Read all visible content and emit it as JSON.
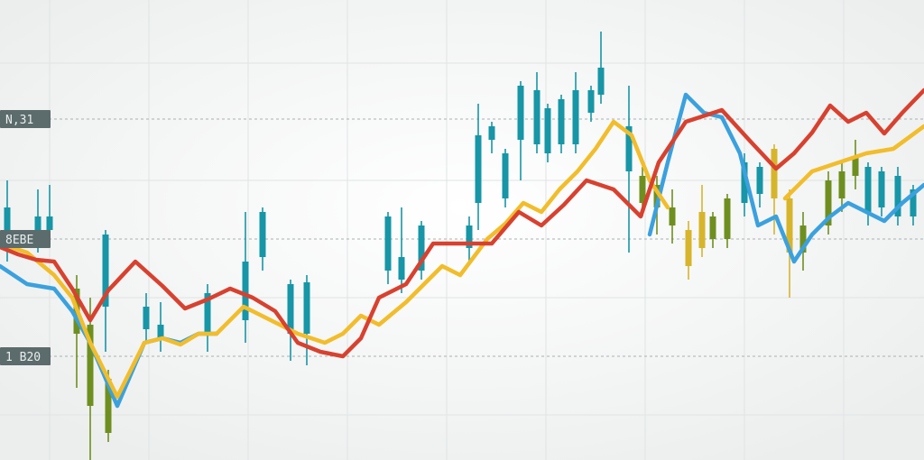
{
  "chart_data": {
    "type": "line",
    "title": "",
    "xlabel": "",
    "ylabel": "",
    "grid": true,
    "legend": "none",
    "ylim": [
      0,
      510
    ],
    "price_labels": [
      {
        "text": "N,31",
        "value": 378
      },
      {
        "text": "8EBE",
        "value": 245
      },
      {
        "text": "1 B20",
        "value": 115
      }
    ],
    "colors": {
      "red": "#d8412f",
      "yellow": "#f2bd2a",
      "blue": "#3aa1de",
      "teal": "#1696a6",
      "olive": "#6e8f1f",
      "gold": "#d7b52b",
      "tag_bg": "#5c6b6b",
      "tag_text": "#e9eeee",
      "grid": "#e1e4e4"
    },
    "series": [
      {
        "name": "red",
        "x": [
          0,
          20,
          40,
          60,
          80,
          100,
          120,
          150,
          180,
          205,
          230,
          255,
          280,
          305,
          330,
          355,
          380,
          400,
          420,
          450,
          480,
          520,
          545,
          575,
          600,
          625,
          650,
          680,
          710,
          730,
          760,
          800,
          830,
          860,
          880,
          900,
          920,
          940,
          960,
          980,
          1000,
          1024
        ],
        "y": [
          236,
          228,
          222,
          220,
          190,
          155,
          188,
          220,
          193,
          168,
          178,
          190,
          180,
          165,
          130,
          120,
          115,
          135,
          180,
          195,
          240,
          240,
          240,
          275,
          260,
          283,
          310,
          300,
          270,
          330,
          375,
          388,
          355,
          323,
          340,
          363,
          393,
          375,
          385,
          362,
          385,
          410
        ]
      },
      {
        "name": "yellow",
        "x": [
          0,
          30,
          60,
          80,
          100,
          130,
          160,
          180,
          200,
          220,
          240,
          270,
          300,
          330,
          360,
          380,
          400,
          420,
          450,
          470,
          490,
          510,
          540,
          560,
          580,
          600,
          620,
          640,
          660,
          680,
          700,
          720,
          740
        ],
        "y": [
          240,
          230,
          205,
          180,
          130,
          70,
          130,
          135,
          128,
          140,
          140,
          170,
          155,
          140,
          130,
          140,
          160,
          150,
          175,
          195,
          215,
          205,
          245,
          262,
          285,
          275,
          300,
          320,
          345,
          375,
          360,
          310,
          280
        ]
      },
      {
        "name": "yellow-right",
        "x": [
          870,
          900,
          930,
          960,
          990,
          1024
        ],
        "y": [
          290,
          320,
          330,
          340,
          345,
          370
        ]
      },
      {
        "name": "blue",
        "x": [
          0,
          30,
          60,
          80,
          100,
          130,
          160,
          180,
          200,
          220,
          240
        ],
        "y": [
          215,
          195,
          190,
          165,
          130,
          60,
          130,
          135,
          130,
          140,
          140
        ]
      },
      {
        "name": "blue-right",
        "x": [
          720,
          740,
          760,
          780,
          800,
          820,
          840,
          860,
          880,
          900,
          920,
          940,
          960,
          980,
          1000,
          1024
        ],
        "y": [
          250,
          330,
          405,
          385,
          380,
          340,
          260,
          270,
          220,
          250,
          270,
          285,
          275,
          265,
          285,
          305
        ]
      }
    ],
    "candles": [
      {
        "x": 8,
        "o": 280,
        "c": 240,
        "h": 310,
        "l": 220,
        "color": "teal"
      },
      {
        "x": 42,
        "o": 270,
        "c": 250,
        "h": 300,
        "l": 230,
        "color": "teal"
      },
      {
        "x": 55,
        "o": 270,
        "c": 255,
        "h": 305,
        "l": 240,
        "color": "teal"
      },
      {
        "x": 85,
        "o": 190,
        "c": 140,
        "h": 205,
        "l": 80,
        "color": "olive"
      },
      {
        "x": 100,
        "o": 150,
        "c": 60,
        "h": 180,
        "l": 0,
        "color": "olive"
      },
      {
        "x": 117,
        "o": 250,
        "c": 170,
        "h": 255,
        "l": 120,
        "color": "teal"
      },
      {
        "x": 120,
        "o": 90,
        "c": 30,
        "h": 100,
        "l": 20,
        "color": "olive"
      },
      {
        "x": 162,
        "o": 170,
        "c": 145,
        "h": 185,
        "l": 130,
        "color": "teal"
      },
      {
        "x": 178,
        "o": 150,
        "c": 135,
        "h": 175,
        "l": 120,
        "color": "teal"
      },
      {
        "x": 230,
        "o": 185,
        "c": 140,
        "h": 195,
        "l": 120,
        "color": "teal"
      },
      {
        "x": 272,
        "o": 220,
        "c": 155,
        "h": 275,
        "l": 130,
        "color": "teal"
      },
      {
        "x": 291,
        "o": 275,
        "c": 225,
        "h": 280,
        "l": 210,
        "color": "teal"
      },
      {
        "x": 322,
        "o": 195,
        "c": 140,
        "h": 200,
        "l": 110,
        "color": "teal"
      },
      {
        "x": 340,
        "o": 197,
        "c": 140,
        "h": 205,
        "l": 105,
        "color": "teal"
      },
      {
        "x": 430,
        "o": 270,
        "c": 210,
        "h": 275,
        "l": 195,
        "color": "teal"
      },
      {
        "x": 445,
        "o": 225,
        "c": 200,
        "h": 280,
        "l": 185,
        "color": "teal"
      },
      {
        "x": 467,
        "o": 260,
        "c": 210,
        "h": 265,
        "l": 200,
        "color": "teal"
      },
      {
        "x": 520,
        "o": 260,
        "c": 235,
        "h": 270,
        "l": 220,
        "color": "teal"
      },
      {
        "x": 530,
        "o": 360,
        "c": 285,
        "h": 395,
        "l": 255,
        "color": "teal"
      },
      {
        "x": 545,
        "o": 370,
        "c": 355,
        "h": 375,
        "l": 340,
        "color": "teal"
      },
      {
        "x": 560,
        "o": 340,
        "c": 290,
        "h": 345,
        "l": 280,
        "color": "teal"
      },
      {
        "x": 577,
        "o": 415,
        "c": 355,
        "h": 420,
        "l": 310,
        "color": "teal"
      },
      {
        "x": 595,
        "o": 410,
        "c": 350,
        "h": 430,
        "l": 340,
        "color": "teal"
      },
      {
        "x": 607,
        "o": 390,
        "c": 340,
        "h": 395,
        "l": 330,
        "color": "teal"
      },
      {
        "x": 622,
        "o": 400,
        "c": 350,
        "h": 405,
        "l": 340,
        "color": "teal"
      },
      {
        "x": 638,
        "o": 410,
        "c": 350,
        "h": 430,
        "l": 340,
        "color": "teal"
      },
      {
        "x": 655,
        "o": 410,
        "c": 385,
        "h": 415,
        "l": 375,
        "color": "teal"
      },
      {
        "x": 666,
        "o": 435,
        "c": 405,
        "h": 475,
        "l": 395,
        "color": "teal"
      },
      {
        "x": 697,
        "o": 370,
        "c": 320,
        "h": 415,
        "l": 230,
        "color": "teal"
      },
      {
        "x": 712,
        "o": 315,
        "c": 285,
        "h": 325,
        "l": 270,
        "color": "olive"
      },
      {
        "x": 728,
        "o": 305,
        "c": 280,
        "h": 315,
        "l": 250,
        "color": "olive"
      },
      {
        "x": 745,
        "o": 280,
        "c": 260,
        "h": 300,
        "l": 240,
        "color": "olive"
      },
      {
        "x": 763,
        "o": 255,
        "c": 215,
        "h": 265,
        "l": 200,
        "color": "gold"
      },
      {
        "x": 778,
        "o": 275,
        "c": 235,
        "h": 305,
        "l": 225,
        "color": "gold"
      },
      {
        "x": 790,
        "o": 270,
        "c": 245,
        "h": 275,
        "l": 235,
        "color": "olive"
      },
      {
        "x": 806,
        "o": 290,
        "c": 245,
        "h": 295,
        "l": 235,
        "color": "olive"
      },
      {
        "x": 825,
        "o": 330,
        "c": 285,
        "h": 340,
        "l": 270,
        "color": "teal"
      },
      {
        "x": 842,
        "o": 325,
        "c": 295,
        "h": 330,
        "l": 280,
        "color": "teal"
      },
      {
        "x": 858,
        "o": 345,
        "c": 290,
        "h": 350,
        "l": 250,
        "color": "gold"
      },
      {
        "x": 875,
        "o": 290,
        "c": 230,
        "h": 300,
        "l": 180,
        "color": "gold"
      },
      {
        "x": 890,
        "o": 260,
        "c": 230,
        "h": 275,
        "l": 210,
        "color": "olive"
      },
      {
        "x": 918,
        "o": 310,
        "c": 260,
        "h": 320,
        "l": 250,
        "color": "olive"
      },
      {
        "x": 933,
        "o": 320,
        "c": 290,
        "h": 330,
        "l": 275,
        "color": "olive"
      },
      {
        "x": 948,
        "o": 335,
        "c": 315,
        "h": 355,
        "l": 300,
        "color": "olive"
      },
      {
        "x": 962,
        "o": 325,
        "c": 275,
        "h": 330,
        "l": 260,
        "color": "teal"
      },
      {
        "x": 977,
        "o": 320,
        "c": 280,
        "h": 325,
        "l": 270,
        "color": "teal"
      },
      {
        "x": 995,
        "o": 315,
        "c": 270,
        "h": 325,
        "l": 260,
        "color": "teal"
      },
      {
        "x": 1012,
        "o": 300,
        "c": 270,
        "h": 305,
        "l": 260,
        "color": "teal"
      }
    ]
  }
}
